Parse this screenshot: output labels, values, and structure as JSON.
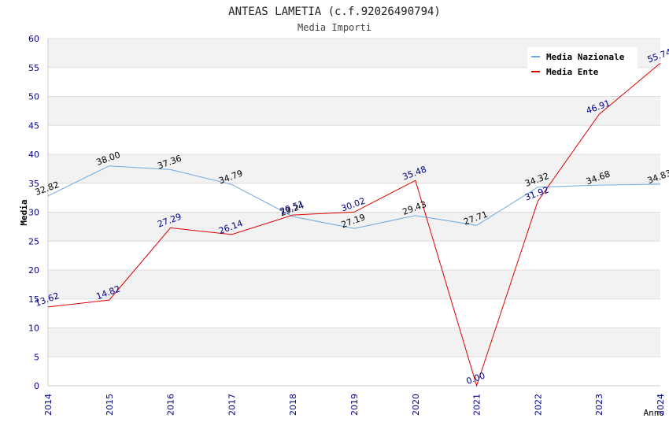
{
  "chart_data": {
    "type": "line",
    "title": "ANTEAS LAMETIA (c.f.92026490794)",
    "subtitle": "Media Importi",
    "xlabel": "Anno",
    "ylabel": "Media",
    "ylim": [
      0,
      60
    ],
    "yticks": [
      0,
      5,
      10,
      15,
      20,
      25,
      30,
      35,
      40,
      45,
      50,
      55,
      60
    ],
    "x": [
      "2014",
      "2015",
      "2016",
      "2017",
      "2018",
      "2019",
      "2020",
      "2021",
      "2022",
      "2023",
      "2024"
    ],
    "legend_position": "top-right",
    "series": [
      {
        "name": "Media Nazionale",
        "color": "#6fa8dc",
        "label_color": "#000000",
        "values": [
          32.82,
          38.0,
          37.36,
          34.79,
          29.24,
          27.19,
          29.43,
          27.71,
          34.32,
          34.68,
          34.83
        ],
        "labels": [
          "32.82",
          "38.00",
          "37.36",
          "34.79",
          "29.24",
          "27.19",
          "29.43",
          "27.71",
          "34.32",
          "34.68",
          "34.83"
        ]
      },
      {
        "name": "Media Ente",
        "color": "#dd0000",
        "label_color": "#00008b",
        "values": [
          13.62,
          14.82,
          27.29,
          26.14,
          29.51,
          30.02,
          35.48,
          0.0,
          31.92,
          46.91,
          55.74
        ],
        "labels": [
          "13.62",
          "14.82",
          "27.29",
          "26.14",
          "29.51",
          "30.02",
          "35.48",
          "0.00",
          "31.92",
          "46.91",
          "55.74"
        ]
      }
    ],
    "colors": {
      "band": "#f2f2f2",
      "grid": "#dddddd",
      "axis_text": "#00008b",
      "title_text": "#222222"
    }
  }
}
